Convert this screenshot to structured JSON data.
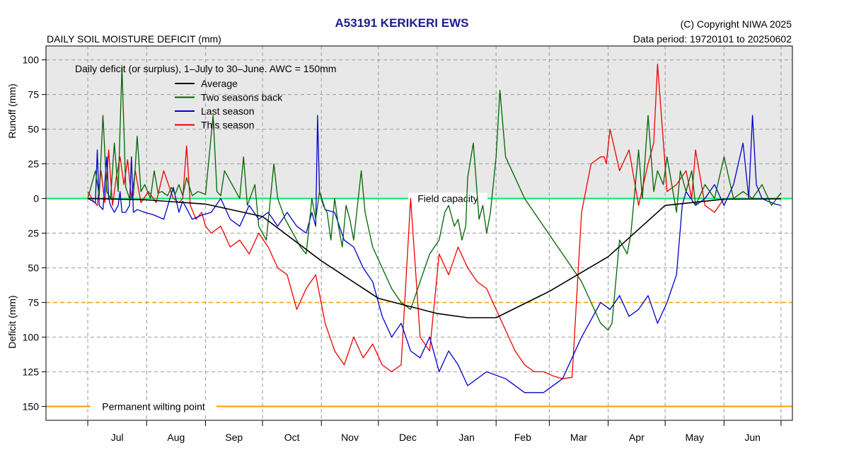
{
  "chart_data": {
    "type": "line",
    "title": "A53191  KERIKERI EWS",
    "subtitle": "DAILY SOIL MOISTURE DEFICIT (mm)",
    "copyright": "(C) Copyright NIWA  2025",
    "data_period": "Data period:  19720101  to  20250602",
    "legend_title": "Daily deficit (or surplus), 1–July to 30–June.  AWC = 150mm",
    "ylabel_top": "Runoff (mm)",
    "ylabel_bottom": "Deficit (mm)",
    "ylim": [
      -110,
      160
    ],
    "xlim": [
      -22,
      371
    ],
    "y_ticks": [
      -100,
      -75,
      -50,
      -25,
      0,
      25,
      50,
      75,
      100,
      125,
      150
    ],
    "y_tick_labels": [
      "100",
      "75",
      "50",
      "25",
      "0",
      "25",
      "50",
      "75",
      "100",
      "125",
      "150"
    ],
    "months": [
      "Jul",
      "Aug",
      "Sep",
      "Oct",
      "Nov",
      "Dec",
      "Jan",
      "Feb",
      "Mar",
      "Apr",
      "May",
      "Jun"
    ],
    "month_starts": [
      0,
      31,
      62,
      92,
      123,
      153,
      184,
      215,
      243,
      274,
      304,
      335,
      365
    ],
    "reference_lines": [
      {
        "name": "Field capacity",
        "value": 0,
        "color": "#00ee66"
      },
      {
        "name": "",
        "value": 75,
        "color": "#f0a000"
      },
      {
        "name": "Permanent wilting point",
        "value": 150,
        "color": "#ff9900"
      }
    ],
    "grid": true,
    "surplus_shading": "#e8e8e8",
    "legend_position": "top-left",
    "series": [
      {
        "name": "Average",
        "color": "#000000",
        "x": [
          0,
          31,
          62,
          92,
          123,
          153,
          184,
          200,
          215,
          243,
          274,
          304,
          335,
          365
        ],
        "y": [
          0,
          1,
          4,
          13,
          45,
          72,
          83,
          86,
          86,
          67,
          42,
          5,
          0.5,
          0.3
        ]
      },
      {
        "name": "Two seasons back",
        "color": "#006400",
        "x": [
          0,
          4,
          6,
          8,
          10,
          12,
          14,
          16,
          18,
          20,
          22,
          24,
          26,
          28,
          30,
          33,
          35,
          37,
          39,
          42,
          44,
          46,
          48,
          50,
          52,
          55,
          58,
          62,
          66,
          68,
          70,
          72,
          80,
          82,
          84,
          88,
          90,
          94,
          98,
          100,
          104,
          108,
          112,
          115,
          118,
          120,
          122,
          124,
          126,
          128,
          130,
          132,
          134,
          136,
          138,
          140,
          142,
          144,
          146,
          150,
          155,
          160,
          165,
          170,
          175,
          180,
          185,
          188,
          190,
          193,
          195,
          197,
          199,
          200,
          203,
          206,
          208,
          210,
          212,
          215,
          217,
          220,
          230,
          240,
          250,
          260,
          270,
          274,
          276,
          280,
          284,
          286,
          290,
          292,
          295,
          298,
          300,
          303,
          305,
          310,
          312,
          315,
          318,
          320,
          325,
          330,
          335,
          340,
          345,
          350,
          355,
          360,
          365
        ],
        "y": [
          0,
          -20,
          -2,
          -60,
          -5,
          0,
          -40,
          -5,
          -95,
          -8,
          0,
          -2,
          -45,
          -5,
          -10,
          0,
          -20,
          -4,
          -5,
          -2,
          -8,
          -3,
          -10,
          -2,
          -15,
          -2,
          -5,
          -3,
          -60,
          -5,
          -2,
          -20,
          0,
          -30,
          5,
          -10,
          20,
          30,
          -25,
          0,
          15,
          25,
          35,
          40,
          0,
          15,
          -5,
          5,
          10,
          30,
          0,
          20,
          35,
          5,
          15,
          30,
          5,
          -20,
          10,
          35,
          50,
          65,
          75,
          80,
          60,
          40,
          30,
          10,
          5,
          20,
          15,
          30,
          20,
          -15,
          -40,
          15,
          5,
          25,
          10,
          -30,
          -78,
          -30,
          0,
          20,
          40,
          60,
          90,
          95,
          90,
          30,
          40,
          25,
          -35,
          0,
          -60,
          -5,
          -20,
          -10,
          -30,
          10,
          -20,
          -5,
          -20,
          5,
          -10,
          0,
          -30,
          0,
          -5,
          0,
          -10,
          5,
          -4
        ]
      },
      {
        "name": "Last season",
        "color": "#0000cc",
        "x": [
          0,
          4,
          5,
          6,
          8,
          10,
          11,
          12,
          14,
          16,
          17,
          18,
          20,
          22,
          23,
          24,
          26,
          30,
          35,
          40,
          45,
          48,
          50,
          55,
          60,
          65,
          70,
          75,
          80,
          85,
          90,
          95,
          100,
          105,
          110,
          115,
          118,
          120,
          121,
          122,
          125,
          130,
          135,
          140,
          145,
          150,
          155,
          160,
          165,
          170,
          175,
          180,
          185,
          190,
          195,
          200,
          210,
          220,
          230,
          240,
          250,
          260,
          270,
          275,
          280,
          285,
          290,
          295,
          300,
          305,
          310,
          313,
          315,
          320,
          325,
          330,
          335,
          340,
          345,
          348,
          350,
          352,
          355,
          358,
          362,
          365
        ],
        "y": [
          0,
          3,
          -35,
          5,
          8,
          -30,
          0,
          5,
          10,
          5,
          -5,
          10,
          10,
          5,
          -30,
          10,
          8,
          10,
          12,
          15,
          -8,
          10,
          2,
          15,
          12,
          10,
          0,
          15,
          20,
          5,
          15,
          10,
          20,
          10,
          20,
          25,
          10,
          20,
          -60,
          -5,
          8,
          10,
          30,
          35,
          50,
          60,
          85,
          100,
          90,
          110,
          115,
          100,
          125,
          110,
          120,
          135,
          125,
          130,
          140,
          140,
          130,
          100,
          75,
          80,
          70,
          85,
          80,
          70,
          90,
          75,
          55,
          5,
          -5,
          5,
          0,
          -10,
          5,
          -10,
          -40,
          0,
          -60,
          -10,
          0,
          2,
          4,
          5
        ]
      },
      {
        "name": "This season",
        "color": "#ee0000",
        "x": [
          0,
          3,
          5,
          7,
          9,
          11,
          13,
          15,
          17,
          19,
          21,
          23,
          25,
          28,
          32,
          36,
          40,
          45,
          48,
          50,
          52,
          54,
          57,
          60,
          62,
          65,
          70,
          75,
          80,
          85,
          90,
          95,
          100,
          105,
          110,
          115,
          120,
          125,
          130,
          135,
          140,
          145,
          150,
          155,
          160,
          165,
          170,
          175,
          180,
          185,
          190,
          195,
          200,
          205,
          210,
          215,
          220,
          225,
          230,
          235,
          240,
          245,
          250,
          255,
          260,
          265,
          270,
          272,
          273,
          275,
          280,
          285,
          290,
          295,
          298,
          300,
          305,
          310,
          315,
          318,
          320,
          325,
          330,
          335
        ],
        "y": [
          -5,
          2,
          5,
          -20,
          3,
          -35,
          5,
          -15,
          -30,
          -10,
          -28,
          0,
          -20,
          3,
          -5,
          3,
          -20,
          0,
          3,
          0,
          -38,
          5,
          15,
          10,
          20,
          25,
          20,
          35,
          30,
          40,
          25,
          35,
          50,
          55,
          80,
          65,
          55,
          90,
          110,
          120,
          100,
          115,
          105,
          120,
          125,
          120,
          0,
          100,
          110,
          40,
          55,
          35,
          50,
          60,
          65,
          80,
          95,
          110,
          120,
          125,
          125,
          128,
          130,
          129,
          10,
          -25,
          -30,
          -30,
          -25,
          -50,
          -20,
          -35,
          5,
          -25,
          -40,
          -97,
          -5,
          -10,
          -20,
          0,
          -35,
          5,
          10,
          0
        ]
      }
    ]
  }
}
